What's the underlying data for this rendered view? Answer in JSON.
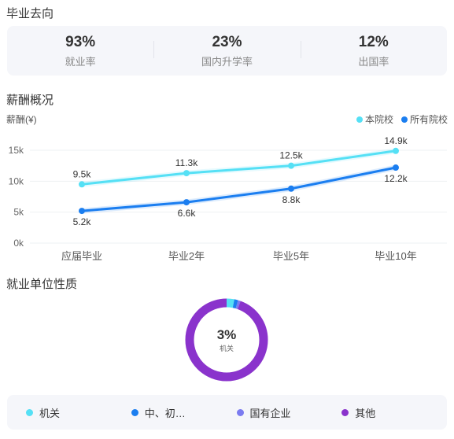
{
  "sections": {
    "destination_title": "毕业去向",
    "salary_title": "薪酬概况",
    "employer_title": "就业单位性质"
  },
  "stats": [
    {
      "value": "93%",
      "label": "就业率"
    },
    {
      "value": "23%",
      "label": "国内升学率"
    },
    {
      "value": "12%",
      "label": "出国率"
    }
  ],
  "colors": {
    "this_school": "#55e0f5",
    "all_schools": "#1b7ef0",
    "state_owned": "#7b7bf0",
    "other": "#8a33cc"
  },
  "chart_data": {
    "type": "line",
    "ylabel": "薪酬(¥)",
    "categories": [
      "应届毕业",
      "毕业2年",
      "毕业5年",
      "毕业10年"
    ],
    "yticks": [
      "0k",
      "5k",
      "10k",
      "15k"
    ],
    "ylim": [
      0,
      15
    ],
    "legend_position": "top-right",
    "series": [
      {
        "name": "本院校",
        "values": [
          9.5,
          11.3,
          12.5,
          14.9
        ],
        "labels": [
          "9.5k",
          "11.3k",
          "12.5k",
          "14.9k"
        ]
      },
      {
        "name": "所有院校",
        "values": [
          5.2,
          6.6,
          8.8,
          12.2
        ],
        "labels": [
          "5.2k",
          "6.6k",
          "8.8k",
          "12.2k"
        ]
      }
    ]
  },
  "donut": {
    "center_value": "3%",
    "center_label": "机关",
    "segments": [
      {
        "name": "机关",
        "percent": 3,
        "color": "#55e0f5"
      },
      {
        "name": "中、初…",
        "percent": 1.5,
        "color": "#1b7ef0"
      },
      {
        "name": "国有企业",
        "percent": 1,
        "color": "#7b7bf0"
      },
      {
        "name": "其他",
        "percent": 94.5,
        "color": "#8a33cc"
      }
    ]
  },
  "bottom_legend": [
    {
      "label": "机关",
      "color": "#55e0f5"
    },
    {
      "label": "中、初…",
      "color": "#1b7ef0"
    },
    {
      "label": "国有企业",
      "color": "#7b7bf0"
    },
    {
      "label": "其他",
      "color": "#8a33cc"
    }
  ]
}
